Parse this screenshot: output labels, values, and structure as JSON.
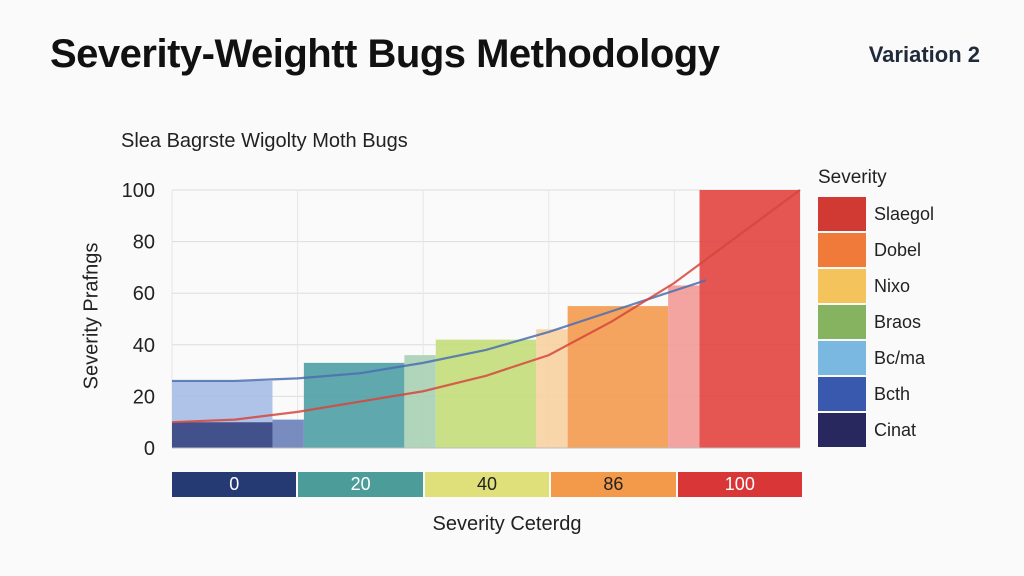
{
  "header": {
    "title": "Severity-Weightt Bugs Methodology",
    "variation": "Variation 2"
  },
  "chart_data": {
    "type": "area",
    "title": "Slea Bagrste Wigolty Moth Bugs",
    "xlabel": "Severity Ceterdg",
    "ylabel": "Severity Prafngs",
    "ylim": [
      0,
      100
    ],
    "xlim": [
      0,
      100
    ],
    "y_ticks": [
      "0",
      "20",
      "40",
      "60",
      "80",
      "100"
    ],
    "grid": true,
    "series": [
      {
        "values": [
          {
            "x": 0,
            "y": 26
          },
          {
            "x": 10,
            "y": 26
          },
          {
            "x": 20,
            "y": 27
          },
          {
            "x": 30,
            "y": 29
          },
          {
            "x": 40,
            "y": 33
          },
          {
            "x": 50,
            "y": 38
          },
          {
            "x": 60,
            "y": 45
          },
          {
            "x": 70,
            "y": 53
          },
          {
            "x": 80,
            "y": 61
          },
          {
            "x": 85,
            "y": 65
          }
        ]
      },
      {
        "values": [
          {
            "x": 0,
            "y": 10
          },
          {
            "x": 10,
            "y": 11
          },
          {
            "x": 20,
            "y": 14
          },
          {
            "x": 30,
            "y": 18
          },
          {
            "x": 40,
            "y": 22
          },
          {
            "x": 50,
            "y": 28
          },
          {
            "x": 60,
            "y": 36
          },
          {
            "x": 70,
            "y": 49
          },
          {
            "x": 80,
            "y": 64
          },
          {
            "x": 90,
            "y": 82
          },
          {
            "x": 100,
            "y": 100
          }
        ]
      }
    ],
    "bands": [
      {
        "x0": 0,
        "x1": 16,
        "lower": 10,
        "upper": 26,
        "color": "#a6bde6"
      },
      {
        "x0": 0,
        "x1": 16,
        "lower": 0,
        "upper": 10,
        "color": "#2e3e7e"
      },
      {
        "x0": 16,
        "x1": 21,
        "lower": 0,
        "upper": 11,
        "color": "#6a7fb8"
      },
      {
        "x0": 21,
        "x1": 37,
        "lower": 0,
        "upper": 33,
        "color": "#4e9ea5"
      },
      {
        "x0": 37,
        "x1": 42,
        "lower": 0,
        "upper": 36,
        "color": "#a8d0b4"
      },
      {
        "x0": 42,
        "x1": 58,
        "lower": 0,
        "upper": 42,
        "color": "#c3dd7a"
      },
      {
        "x0": 58,
        "x1": 63,
        "lower": 0,
        "upper": 46,
        "color": "#f7d2a0"
      },
      {
        "x0": 63,
        "x1": 79,
        "lower": 0,
        "upper": 55,
        "color": "#f39a4c"
      },
      {
        "x0": 79,
        "x1": 84,
        "lower": 0,
        "upper": 63,
        "color": "#f29a96"
      },
      {
        "x0": 84,
        "x1": 100,
        "lower": 0,
        "upper": 100,
        "color": "#e2433f"
      }
    ],
    "legend": {
      "title": "Severity",
      "placement": "right",
      "items": [
        {
          "label": "Slaegol",
          "color": "#d13a32"
        },
        {
          "label": "Dobel",
          "color": "#ef7a3a"
        },
        {
          "label": "Nixo",
          "color": "#f5c35c"
        },
        {
          "label": "Braos",
          "color": "#86b35f"
        },
        {
          "label": "Bc/ma",
          "color": "#7ab8e2"
        },
        {
          "label": "Bcth",
          "color": "#3959ae"
        },
        {
          "label": "Cinat",
          "color": "#28285e"
        }
      ]
    },
    "scale": [
      {
        "label": "0",
        "color": "#253a73",
        "text_color": "#ffffff"
      },
      {
        "label": "20",
        "color": "#4c9c99",
        "text_color": "#ffffff"
      },
      {
        "label": "40",
        "color": "#dfe07a",
        "text_color": "#222222"
      },
      {
        "label": "86",
        "color": "#f39a4a",
        "text_color": "#222222"
      },
      {
        "label": "100",
        "color": "#d93737",
        "text_color": "#ffffff"
      }
    ]
  }
}
